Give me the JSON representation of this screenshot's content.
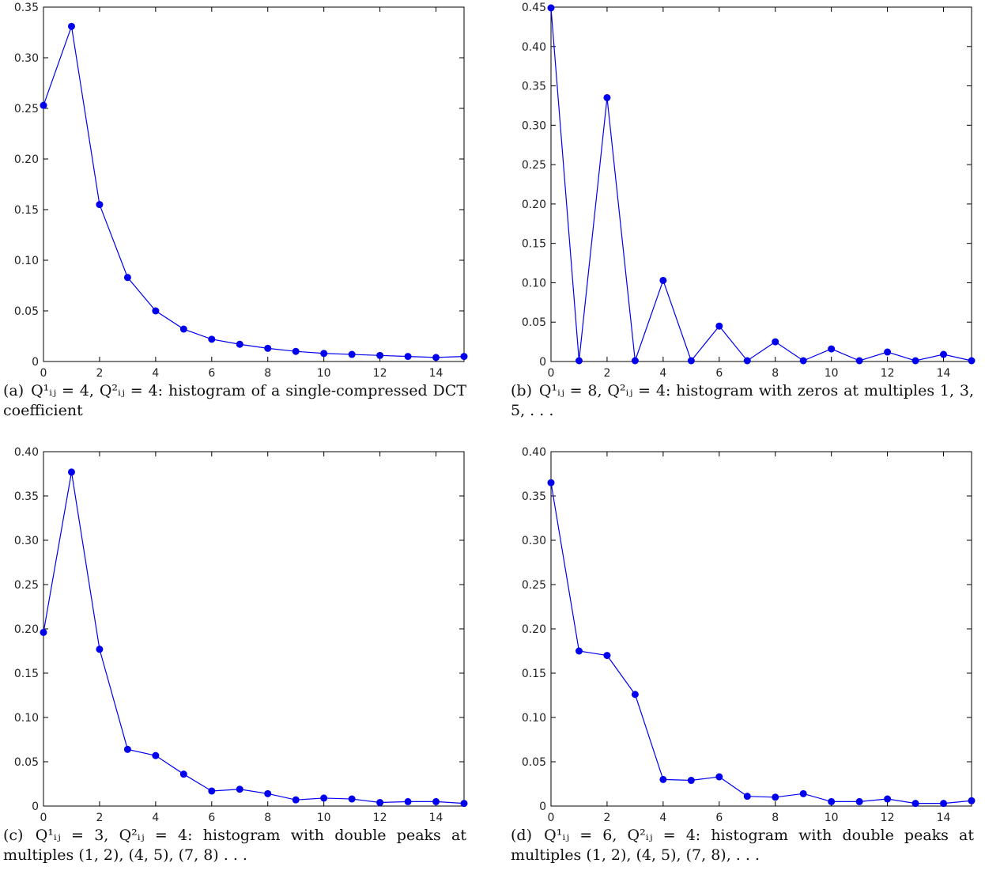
{
  "chart_data": [
    {
      "type": "line",
      "panel": "a",
      "x": [
        0,
        1,
        2,
        3,
        4,
        5,
        6,
        7,
        8,
        9,
        10,
        11,
        12,
        13,
        14,
        15
      ],
      "series": [
        {
          "values": [
            0.253,
            0.331,
            0.155,
            0.083,
            0.05,
            0.032,
            0.022,
            0.017,
            0.013,
            0.01,
            0.008,
            0.007,
            0.006,
            0.005,
            0.004,
            0.005
          ]
        }
      ],
      "xlim": [
        0,
        15
      ],
      "ylim": [
        0,
        0.35
      ],
      "xticks": [
        "0",
        "2",
        "4",
        "6",
        "8",
        "10",
        "12",
        "14"
      ],
      "yticks": [
        "0",
        "0.05",
        "0.10",
        "0.15",
        "0.20",
        "0.25",
        "0.30",
        "0.35"
      ],
      "color": "#0000ee",
      "caption_tag": "(a)",
      "caption": "Q¹ᵢⱼ = 4, Q²ᵢⱼ = 4: histogram of a single-compressed DCT coefficient"
    },
    {
      "type": "line",
      "panel": "b",
      "x": [
        0,
        1,
        2,
        3,
        4,
        5,
        6,
        7,
        8,
        9,
        10,
        11,
        12,
        13,
        14,
        15
      ],
      "series": [
        {
          "values": [
            0.449,
            0.001,
            0.335,
            0.001,
            0.103,
            0.001,
            0.045,
            0.001,
            0.025,
            0.001,
            0.016,
            0.001,
            0.012,
            0.001,
            0.009,
            0.001
          ]
        }
      ],
      "xlim": [
        0,
        15
      ],
      "ylim": [
        0,
        0.45
      ],
      "xticks": [
        "0",
        "2",
        "4",
        "6",
        "8",
        "10",
        "12",
        "14"
      ],
      "yticks": [
        "0",
        "0.05",
        "0.10",
        "0.15",
        "0.20",
        "0.25",
        "0.30",
        "0.35",
        "0.40",
        "0.45"
      ],
      "color": "#0000ee",
      "caption_tag": "(b)",
      "caption": "Q¹ᵢⱼ = 8, Q²ᵢⱼ = 4: histogram with zeros at multiples 1, 3, 5, . . ."
    },
    {
      "type": "line",
      "panel": "c",
      "x": [
        0,
        1,
        2,
        3,
        4,
        5,
        6,
        7,
        8,
        9,
        10,
        11,
        12,
        13,
        14,
        15
      ],
      "series": [
        {
          "values": [
            0.196,
            0.377,
            0.177,
            0.064,
            0.057,
            0.036,
            0.017,
            0.019,
            0.014,
            0.007,
            0.009,
            0.008,
            0.004,
            0.005,
            0.005,
            0.003
          ]
        }
      ],
      "xlim": [
        0,
        15
      ],
      "ylim": [
        0,
        0.4
      ],
      "xticks": [
        "0",
        "2",
        "4",
        "6",
        "8",
        "10",
        "12",
        "14"
      ],
      "yticks": [
        "0",
        "0.05",
        "0.10",
        "0.15",
        "0.20",
        "0.25",
        "0.30",
        "0.35",
        "0.40"
      ],
      "color": "#0000ee",
      "caption_tag": "(c)",
      "caption": "Q¹ᵢⱼ = 3, Q²ᵢⱼ = 4: histogram with double peaks at multiples (1, 2), (4, 5), (7, 8) . . ."
    },
    {
      "type": "line",
      "panel": "d",
      "x": [
        0,
        1,
        2,
        3,
        4,
        5,
        6,
        7,
        8,
        9,
        10,
        11,
        12,
        13,
        14,
        15
      ],
      "series": [
        {
          "values": [
            0.365,
            0.175,
            0.17,
            0.126,
            0.03,
            0.029,
            0.033,
            0.011,
            0.01,
            0.014,
            0.005,
            0.005,
            0.008,
            0.003,
            0.003,
            0.006
          ]
        }
      ],
      "xlim": [
        0,
        15
      ],
      "ylim": [
        0,
        0.4
      ],
      "xticks": [
        "0",
        "2",
        "4",
        "6",
        "8",
        "10",
        "12",
        "14"
      ],
      "yticks": [
        "0",
        "0.05",
        "0.10",
        "0.15",
        "0.20",
        "0.25",
        "0.30",
        "0.35",
        "0.40"
      ],
      "color": "#0000ee",
      "caption_tag": "(d)",
      "caption": "Q¹ᵢⱼ = 6, Q²ᵢⱼ = 4: histogram with double peaks at multiples (1, 2), (4, 5), (7, 8), . . ."
    }
  ]
}
